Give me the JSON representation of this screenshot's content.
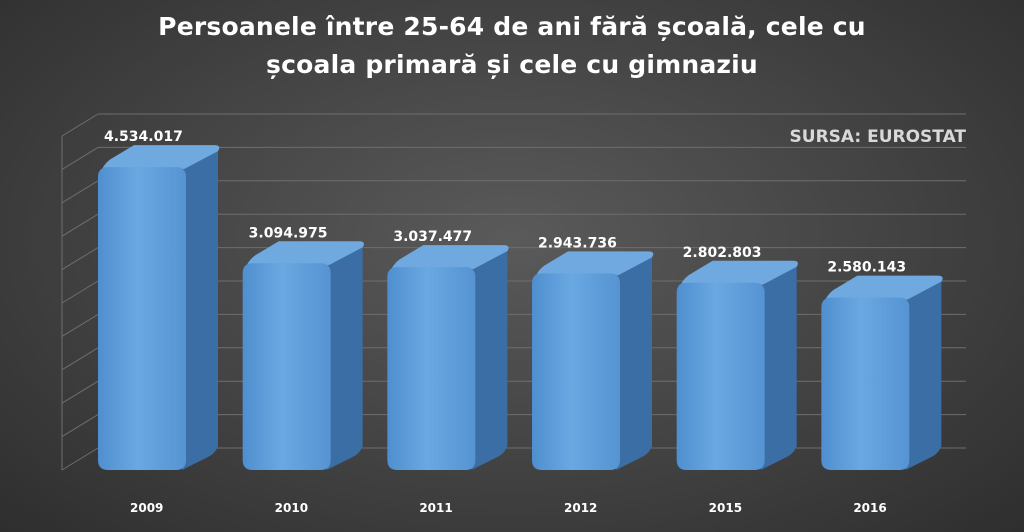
{
  "title": {
    "line1": "Persoanele între 25-64 de ani fără școală, cele cu",
    "line2": "școala primară și cele cu gimnaziu"
  },
  "source_note": "SURSA: EUROSTAT",
  "colors": {
    "bar_front": "#5b9bd5",
    "bar_side": "#3a6ea5",
    "bar_top": "#6fa9df",
    "gridline": "#6e6e6e",
    "text": "#ffffff"
  },
  "chart_data": {
    "type": "bar",
    "title": "Persoanele între 25-64 de ani fără școală, cele cu școala primară și cele cu gimnaziu",
    "categories": [
      "2009",
      "2010",
      "2011",
      "2012",
      "2015",
      "2016"
    ],
    "values": [
      4534017,
      3094975,
      3037477,
      2943736,
      2802803,
      2580143
    ],
    "value_labels": [
      "4.534.017",
      "3.094.975",
      "3.037.477",
      "2.943.736",
      "2.802.803",
      "2.580.143"
    ],
    "xlabel": "",
    "ylabel": "",
    "ylim": [
      0,
      5000000
    ],
    "grid": true,
    "legend": "none",
    "style": "3d-column"
  }
}
